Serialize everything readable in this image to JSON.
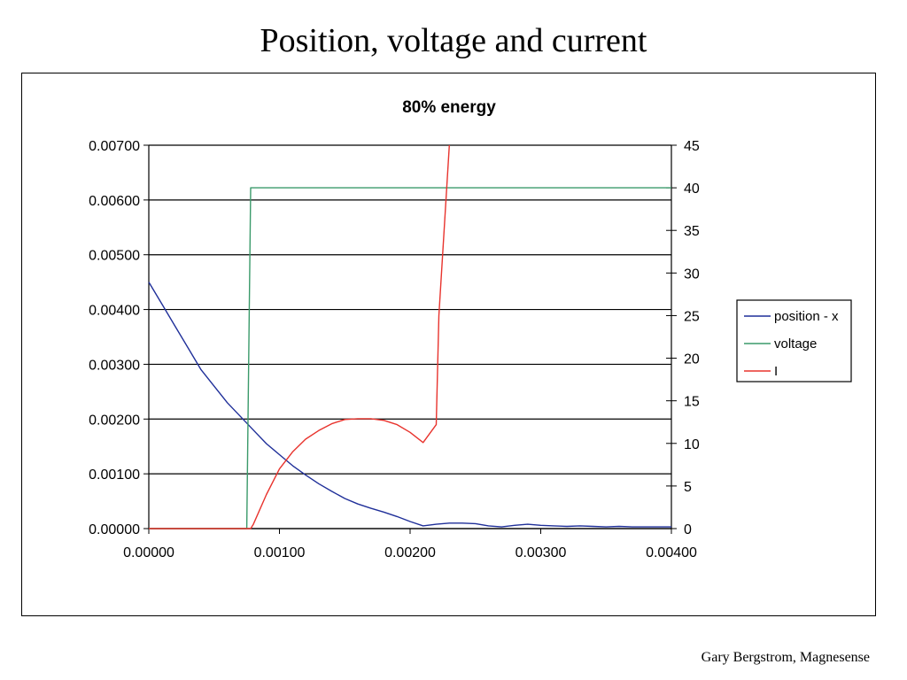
{
  "slide": {
    "title": "Position, voltage and current",
    "footer": "Gary Bergstrom, Magnesense"
  },
  "colors": {
    "position": "#1f2f99",
    "voltage": "#3a9a6a",
    "current": "#e8332d"
  },
  "chart_data": {
    "type": "line",
    "title": "80% energy",
    "xlabel": "",
    "ylabel": "",
    "y2label": "",
    "xlim": [
      0,
      0.004
    ],
    "ylim": [
      0,
      0.007
    ],
    "y2lim": [
      0,
      45
    ],
    "x_ticks": [
      "0.00000",
      "0.00100",
      "0.00200",
      "0.00300",
      "0.00400"
    ],
    "y_ticks": [
      "0.00000",
      "0.00100",
      "0.00200",
      "0.00300",
      "0.00400",
      "0.00500",
      "0.00600",
      "0.00700"
    ],
    "y2_ticks": [
      "0",
      "5",
      "10",
      "15",
      "20",
      "25",
      "30",
      "35",
      "40",
      "45"
    ],
    "grid": true,
    "legend_position": "right",
    "series": [
      {
        "name": "position - x",
        "axis": "left",
        "x": [
          0,
          0.0001,
          0.0002,
          0.0003,
          0.0004,
          0.0005,
          0.0006,
          0.0007,
          0.0008,
          0.0009,
          0.001,
          0.0011,
          0.0012,
          0.0013,
          0.0014,
          0.0015,
          0.0016,
          0.0017,
          0.0018,
          0.0019,
          0.002,
          0.0021,
          0.0022,
          0.0023,
          0.0024,
          0.0025,
          0.0026,
          0.0027,
          0.0028,
          0.0029,
          0.003,
          0.0031,
          0.0032,
          0.0033,
          0.0034,
          0.0035,
          0.0036,
          0.0037,
          0.0038,
          0.0039,
          0.004
        ],
        "values": [
          0.0045,
          0.0041,
          0.0037,
          0.0033,
          0.0029,
          0.0026,
          0.0023,
          0.00205,
          0.0018,
          0.00155,
          0.00135,
          0.00115,
          0.00098,
          0.00082,
          0.00068,
          0.00055,
          0.00045,
          0.00037,
          0.0003,
          0.00022,
          0.00013,
          5e-05,
          8e-05,
          0.0001,
          0.0001,
          9e-05,
          5e-05,
          3e-05,
          6e-05,
          8e-05,
          6e-05,
          5e-05,
          4e-05,
          5e-05,
          4e-05,
          3e-05,
          4e-05,
          3e-05,
          3e-05,
          3e-05,
          3e-05
        ]
      },
      {
        "name": "voltage",
        "axis": "right",
        "x": [
          0,
          0.00075,
          0.00078,
          0.004
        ],
        "values": [
          0,
          0,
          40,
          40
        ]
      },
      {
        "name": "I",
        "axis": "right",
        "x": [
          0,
          0.00078,
          0.0008,
          0.0009,
          0.001,
          0.0011,
          0.0012,
          0.0013,
          0.0014,
          0.0015,
          0.0016,
          0.0017,
          0.0018,
          0.0019,
          0.002,
          0.0021,
          0.0022,
          0.00222,
          0.0023
        ],
        "values": [
          0,
          0,
          0.5,
          4,
          7,
          9,
          10.5,
          11.5,
          12.3,
          12.8,
          12.9,
          12.9,
          12.7,
          12.2,
          11.3,
          10.1,
          12.2,
          25,
          45
        ]
      }
    ]
  }
}
